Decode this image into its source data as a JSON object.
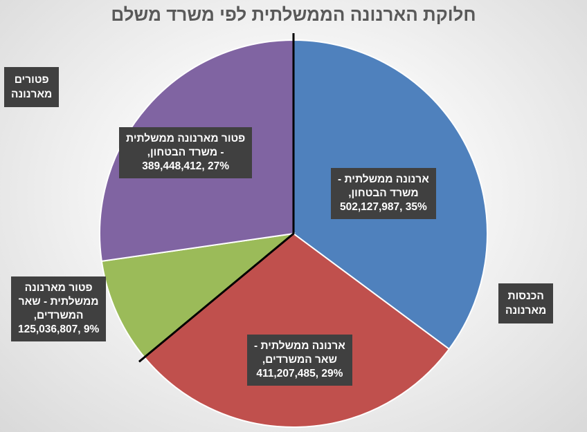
{
  "chart_data": {
    "type": "pie",
    "title": "חלוקת הארנונה הממשלתית לפי משרד משלם",
    "series": [
      {
        "name": "ארנונה ממשלתית - משרד הבטחון",
        "value": 502127987,
        "percent": "35%",
        "color": "#4f81bd",
        "label_lines": [
          "ארנונה ממשלתית -",
          "משרד הבטחון,",
          "35% ,502,127,987"
        ]
      },
      {
        "name": "ארנונה ממשלתית - שאר המשרדים",
        "value": 411207485,
        "percent": "29%",
        "color": "#c0504d",
        "label_lines": [
          "ארנונה ממשלתית -",
          "שאר המשרדים,",
          "29% ,411,207,485"
        ]
      },
      {
        "name": "פטור מארנונה ממשלתית - שאר המשרדים",
        "value": 125036807,
        "percent": "9%",
        "color": "#9bbb59",
        "label_lines": [
          "פטור מארנונה",
          "ממשלתית - שאר",
          "המשרדים,",
          "9% ,125,036,807"
        ]
      },
      {
        "name": "פטור מארנונה ממשלתית - משרד הבטחון",
        "value": 389448412,
        "percent": "27%",
        "color": "#8064a2",
        "label_lines": [
          "פטור מארנונה ממשלתית",
          "- משרד הבטחון,",
          "27% ,389,448,412"
        ]
      }
    ],
    "groups": [
      {
        "lines": [
          "פטורים",
          "מארנונה"
        ]
      },
      {
        "lines": [
          "הכנסות",
          "מארנונה"
        ]
      }
    ],
    "divider_color": "#000000"
  }
}
